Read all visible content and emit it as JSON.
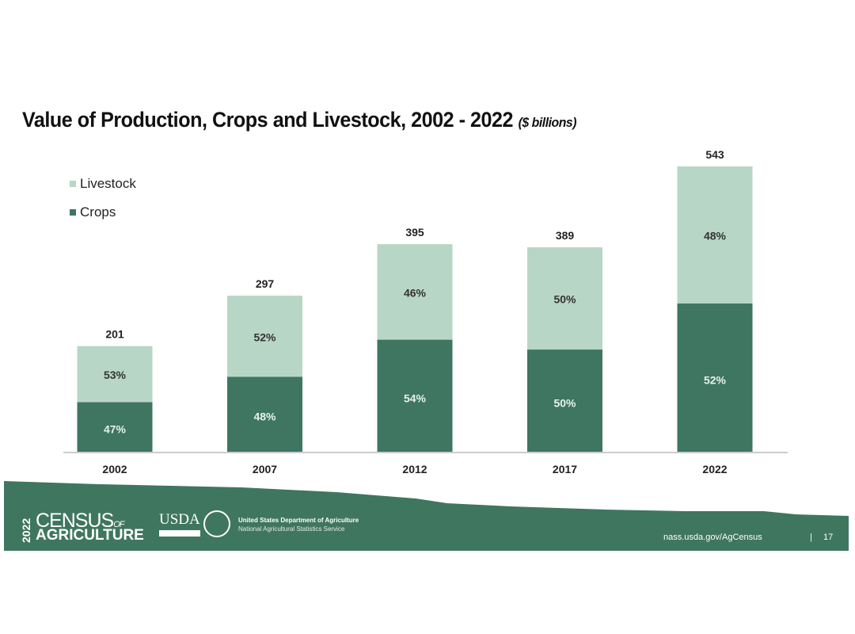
{
  "chart_data": {
    "type": "bar",
    "stacked": true,
    "title": "Value of Production, Crops and Livestock, 2002 - 2022",
    "title_unit": "($ billions)",
    "categories": [
      "2002",
      "2007",
      "2012",
      "2017",
      "2022"
    ],
    "totals": [
      201,
      297,
      395,
      389,
      543
    ],
    "series": [
      {
        "name": "Crops",
        "percent_labels": [
          "47%",
          "48%",
          "54%",
          "50%",
          "52%"
        ],
        "percent": [
          47,
          48,
          54,
          50,
          52
        ],
        "color": "#3e7661"
      },
      {
        "name": "Livestock",
        "percent_labels": [
          "53%",
          "52%",
          "46%",
          "50%",
          "48%"
        ],
        "percent": [
          53,
          52,
          46,
          50,
          48
        ],
        "color": "#b8d6c6"
      }
    ],
    "legend": [
      "Livestock",
      "Crops"
    ],
    "legend_placement": "top-left",
    "ylim": [
      0,
      543
    ],
    "grid": false
  },
  "footer": {
    "logo_year": "2022",
    "logo_census": "CENSUS",
    "logo_of": "OF",
    "logo_agriculture": "AGRICULTURE",
    "usda": "USDA",
    "dept_line1": "United States Department of Agriculture",
    "dept_line2": "National Agricultural Statistics Service",
    "url": "nass.usda.gov/AgCensus",
    "separator": "|",
    "page_number": "17",
    "color": "#3f7660"
  }
}
